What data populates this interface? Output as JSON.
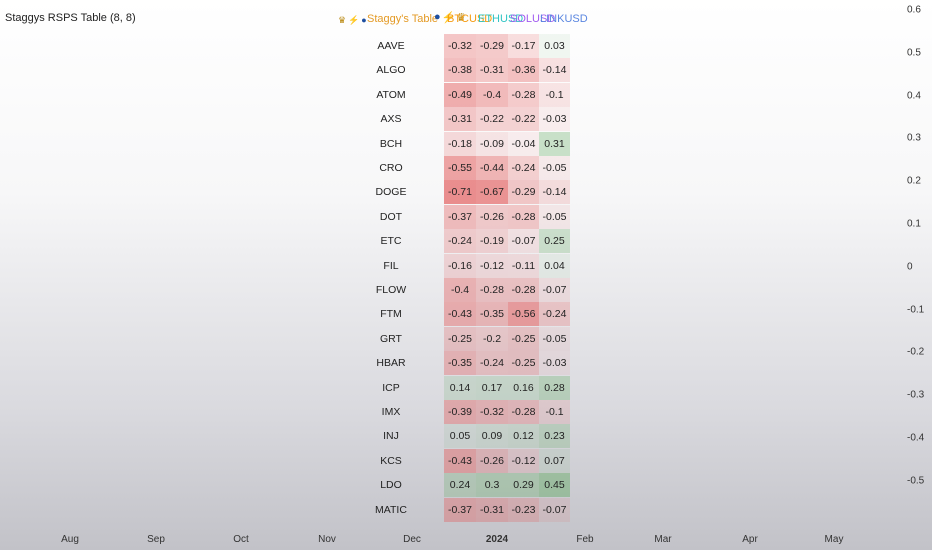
{
  "indicator": {
    "title": "Staggys RSPS Table (8, 8)"
  },
  "table": {
    "title": "Staggy's Table",
    "header_icons": [
      "trophy-icon",
      "lightning-icon",
      "coin-icon"
    ],
    "columns": [
      {
        "label": "BTCUSD",
        "color": "#f59a0f"
      },
      {
        "label": "ETHUSD",
        "color": "#2ec4c4"
      },
      {
        "label": "SOLUSD",
        "color": "#a15bf0"
      },
      {
        "label": "LINKUSD",
        "color": "#5a86e0"
      }
    ],
    "colors": {
      "positive": "#5aa85a",
      "negative": "#e25555"
    },
    "rows": [
      {
        "asset": "AAVE",
        "values": [
          "-0.32",
          "-0.29",
          "-0.17",
          "0.03"
        ]
      },
      {
        "asset": "ALGO",
        "values": [
          "-0.38",
          "-0.31",
          "-0.36",
          "-0.14"
        ]
      },
      {
        "asset": "ATOM",
        "values": [
          "-0.49",
          "-0.4",
          "-0.28",
          "-0.1"
        ]
      },
      {
        "asset": "AXS",
        "values": [
          "-0.31",
          "-0.22",
          "-0.22",
          "-0.03"
        ]
      },
      {
        "asset": "BCH",
        "values": [
          "-0.18",
          "-0.09",
          "-0.04",
          "0.31"
        ]
      },
      {
        "asset": "CRO",
        "values": [
          "-0.55",
          "-0.44",
          "-0.24",
          "-0.05"
        ]
      },
      {
        "asset": "DOGE",
        "values": [
          "-0.71",
          "-0.67",
          "-0.29",
          "-0.14"
        ]
      },
      {
        "asset": "DOT",
        "values": [
          "-0.37",
          "-0.26",
          "-0.28",
          "-0.05"
        ]
      },
      {
        "asset": "ETC",
        "values": [
          "-0.24",
          "-0.19",
          "-0.07",
          "0.25"
        ]
      },
      {
        "asset": "FIL",
        "values": [
          "-0.16",
          "-0.12",
          "-0.11",
          "0.04"
        ]
      },
      {
        "asset": "FLOW",
        "values": [
          "-0.4",
          "-0.28",
          "-0.28",
          "-0.07"
        ]
      },
      {
        "asset": "FTM",
        "values": [
          "-0.43",
          "-0.35",
          "-0.56",
          "-0.24"
        ]
      },
      {
        "asset": "GRT",
        "values": [
          "-0.25",
          "-0.2",
          "-0.25",
          "-0.05"
        ]
      },
      {
        "asset": "HBAR",
        "values": [
          "-0.35",
          "-0.24",
          "-0.25",
          "-0.03"
        ]
      },
      {
        "asset": "ICP",
        "values": [
          "0.14",
          "0.17",
          "0.16",
          "0.28"
        ]
      },
      {
        "asset": "IMX",
        "values": [
          "-0.39",
          "-0.32",
          "-0.28",
          "-0.1"
        ]
      },
      {
        "asset": "INJ",
        "values": [
          "0.05",
          "0.09",
          "0.12",
          "0.23"
        ]
      },
      {
        "asset": "KCS",
        "values": [
          "-0.43",
          "-0.26",
          "-0.12",
          "0.07"
        ]
      },
      {
        "asset": "LDO",
        "values": [
          "0.24",
          "0.3",
          "0.29",
          "0.45"
        ]
      },
      {
        "asset": "MATIC",
        "values": [
          "-0.37",
          "-0.31",
          "-0.23",
          "-0.07"
        ]
      }
    ]
  },
  "price_axis": [
    "0.6",
    "0.5",
    "0.4",
    "0.3",
    "0.2",
    "0.1",
    "0",
    "-0.1",
    "-0.2",
    "-0.3",
    "-0.4",
    "-0.5"
  ],
  "time_axis": [
    "Aug",
    "Sep",
    "Oct",
    "Nov",
    "Dec",
    "2024",
    "Feb",
    "Mar",
    "Apr",
    "May"
  ]
}
